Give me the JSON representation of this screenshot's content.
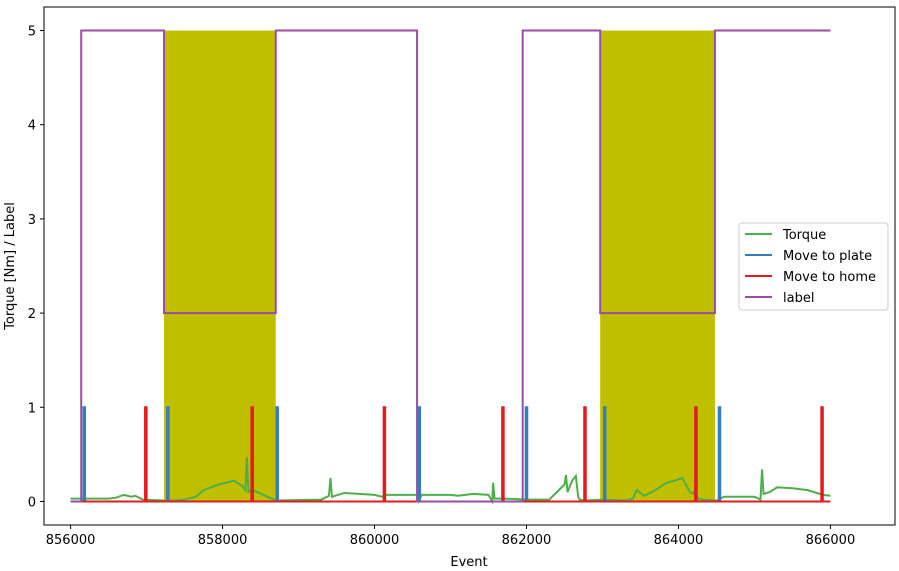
{
  "chart_data": {
    "type": "line",
    "xlabel": "Event",
    "ylabel": "Torque [Nm] / Label",
    "xlim": [
      855650,
      866850
    ],
    "ylim": [
      -0.25,
      5.25
    ],
    "x_ticks": [
      856000,
      858000,
      860000,
      862000,
      864000,
      866000
    ],
    "x_tick_labels": [
      "856000",
      "858000",
      "860000",
      "862000",
      "864000",
      "866000"
    ],
    "y_ticks": [
      0,
      1,
      2,
      3,
      4,
      5
    ],
    "y_tick_labels": [
      "0",
      "1",
      "2",
      "3",
      "4",
      "5"
    ],
    "grid": false,
    "legend_position": "center-right",
    "shaded_regions": {
      "color": "#bfbf00",
      "ranges": [
        [
          857230,
          858700
        ],
        [
          862970,
          864480
        ]
      ],
      "ymax": 5
    },
    "series": [
      {
        "name": "Torque",
        "color": "#4daf4a",
        "x": [
          856000,
          856500,
          856600,
          856700,
          856800,
          856850,
          856950,
          857250,
          857400,
          857500,
          857650,
          857750,
          857850,
          857950,
          858050,
          858150,
          858250,
          858300,
          858320,
          858340,
          858400,
          858700,
          859300,
          859400,
          859420,
          859440,
          859600,
          859800,
          860000,
          860100,
          860150,
          860550,
          860580,
          860620,
          860900,
          861000,
          861100,
          861300,
          861500,
          861550,
          861560,
          861580,
          861650,
          861700,
          862000,
          862300,
          862500,
          862520,
          862540,
          862600,
          862650,
          862680,
          862700,
          862750,
          863000,
          863300,
          863400,
          863450,
          863550,
          863650,
          863750,
          863850,
          863950,
          864050,
          864150,
          864200,
          864220,
          864240,
          864300,
          864500,
          864600,
          865000,
          865080,
          865100,
          865120,
          865200,
          865300,
          865500,
          865700,
          865900,
          866000
        ],
        "y": [
          0.03,
          0.03,
          0.04,
          0.07,
          0.05,
          0.06,
          0.02,
          0.01,
          0.01,
          0.02,
          0.05,
          0.12,
          0.15,
          0.18,
          0.2,
          0.22,
          0.17,
          0.12,
          0.47,
          0.1,
          0.12,
          0.01,
          0.02,
          0.06,
          0.25,
          0.05,
          0.09,
          0.08,
          0.07,
          0.05,
          0.07,
          0.07,
          0.0,
          0.07,
          0.07,
          0.07,
          0.06,
          0.08,
          0.07,
          0.0,
          0.2,
          0.03,
          0.03,
          0.03,
          0.02,
          0.02,
          0.18,
          0.28,
          0.1,
          0.22,
          0.27,
          0.05,
          0.02,
          0.01,
          0.02,
          0.01,
          0.03,
          0.12,
          0.06,
          0.1,
          0.15,
          0.2,
          0.22,
          0.25,
          0.1,
          0.08,
          0.14,
          0.04,
          0.02,
          0.01,
          0.05,
          0.05,
          0.02,
          0.34,
          0.08,
          0.1,
          0.15,
          0.14,
          0.12,
          0.07,
          0.06
        ]
      },
      {
        "name": "Move to plate",
        "color": "#377eb8",
        "x": [
          856000,
          856170,
          856170,
          856190,
          856190,
          857270,
          857270,
          857290,
          857290,
          858710,
          858710,
          858730,
          858730,
          860580,
          860580,
          860600,
          860600,
          861990,
          861990,
          862010,
          862010,
          863020,
          863020,
          863040,
          863040,
          864530,
          864530,
          864550,
          864550,
          866000
        ],
        "y": [
          0,
          0,
          1,
          1,
          0,
          0,
          1,
          1,
          0,
          0,
          1,
          1,
          0,
          0,
          1,
          1,
          0,
          0,
          1,
          1,
          0,
          0,
          1,
          1,
          0,
          0,
          1,
          1,
          0,
          0
        ]
      },
      {
        "name": "Move to home",
        "color": "#e41a1c",
        "x": [
          856000,
          856980,
          856980,
          857000,
          857000,
          858380,
          858380,
          858400,
          858400,
          860120,
          860120,
          860140,
          860140,
          861680,
          861680,
          861700,
          861700,
          862760,
          862760,
          862780,
          862780,
          864220,
          864220,
          864240,
          864240,
          865880,
          865880,
          865900,
          865900,
          866000
        ],
        "y": [
          0,
          0,
          1,
          1,
          0,
          0,
          1,
          1,
          0,
          0,
          1,
          1,
          0,
          0,
          1,
          1,
          0,
          0,
          1,
          1,
          0,
          0,
          1,
          1,
          0,
          0,
          1,
          1,
          0,
          0
        ]
      },
      {
        "name": "label",
        "color": "#984ea3",
        "x": [
          856000,
          856140,
          856140,
          857230,
          857230,
          858700,
          858700,
          860560,
          860560,
          861950,
          861950,
          862970,
          862970,
          864480,
          864480,
          866000
        ],
        "y": [
          0,
          0,
          5,
          5,
          2,
          2,
          5,
          5,
          0,
          0,
          5,
          5,
          2,
          2,
          5,
          5
        ]
      }
    ]
  }
}
